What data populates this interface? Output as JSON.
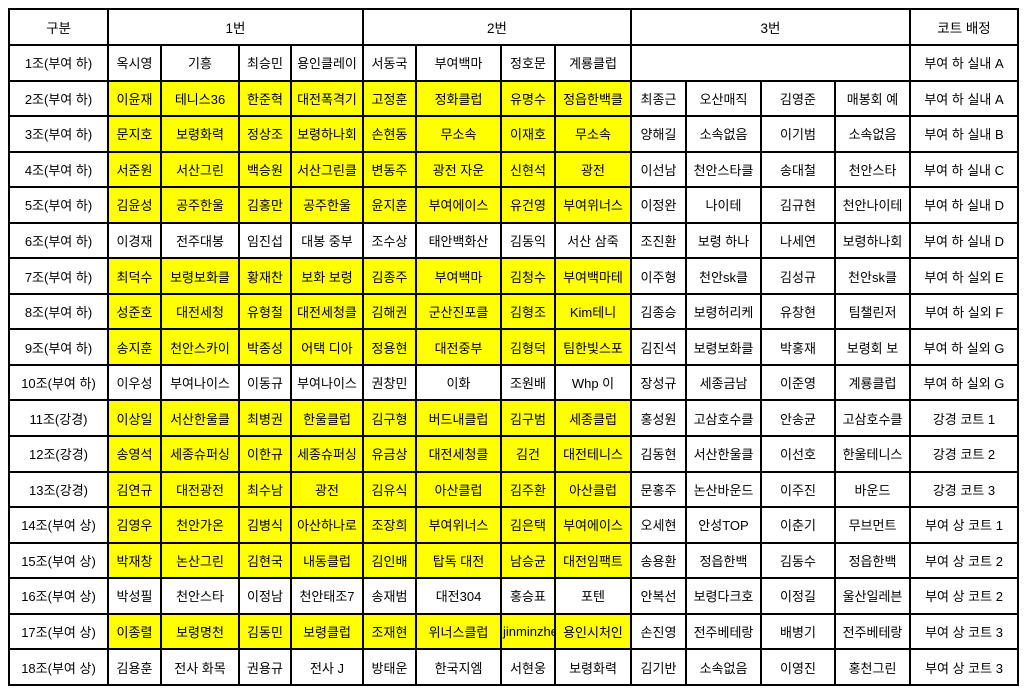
{
  "colors": {
    "highlight": "#FFFF00",
    "border": "#000000",
    "background": "#FFFFFF",
    "text": "#000000"
  },
  "header": {
    "group": "구분",
    "entry1": "1번",
    "entry2": "2번",
    "entry3": "3번",
    "court": "코트 배정"
  },
  "rows": [
    {
      "label": "1조(부여 하)",
      "entry1": [
        "옥시영",
        "기흥",
        "최승민",
        "용인클레이"
      ],
      "entry1_highlight": false,
      "entry2": [
        "서동국",
        "부여백마",
        "정호문",
        "계룡클럽"
      ],
      "entry2_highlight": false,
      "entry3": null,
      "entry3_highlight": false,
      "court": "부여 하 실내 A"
    },
    {
      "label": "2조(부여 하)",
      "entry1": [
        "이윤재",
        "테니스36",
        "한준혁",
        "대전폭격기"
      ],
      "entry1_highlight": true,
      "entry2": [
        "고정훈",
        "정화클럽",
        "유명수",
        "정읍한백클"
      ],
      "entry2_highlight": true,
      "entry3": [
        "최종근",
        "오산매직",
        "김영준",
        "매봉회 예"
      ],
      "entry3_highlight": false,
      "court": "부여 하 실내 A"
    },
    {
      "label": "3조(부여 하)",
      "entry1": [
        "문지호",
        "보령화력",
        "정상조",
        "보령하나회"
      ],
      "entry1_highlight": true,
      "entry2": [
        "손현동",
        "무소속",
        "이재호",
        "무소속"
      ],
      "entry2_highlight": true,
      "entry3": [
        "양해길",
        "소속없음",
        "이기범",
        "소속없음"
      ],
      "entry3_highlight": false,
      "court": "부여 하 실내 B"
    },
    {
      "label": "4조(부여 하)",
      "entry1": [
        "서준원",
        "서산그린",
        "백승원",
        "서산그린클"
      ],
      "entry1_highlight": true,
      "entry2": [
        "변동주",
        "광전 자운",
        "신현석",
        "광전"
      ],
      "entry2_highlight": true,
      "entry3": [
        "이선남",
        "천안스타클",
        "송대철",
        "천안스타"
      ],
      "entry3_highlight": false,
      "court": "부여 하 실내 C"
    },
    {
      "label": "5조(부여 하)",
      "entry1": [
        "김윤성",
        "공주한울",
        "김홍만",
        "공주한울"
      ],
      "entry1_highlight": true,
      "entry2": [
        "윤지훈",
        "부여에이스",
        "유건영",
        "부여위너스"
      ],
      "entry2_highlight": true,
      "entry3": [
        "이정완",
        "나이테",
        "김규현",
        "천안나이테"
      ],
      "entry3_highlight": false,
      "court": "부여 하 실내 D"
    },
    {
      "label": "6조(부여 하)",
      "entry1": [
        "이경재",
        "전주대봉",
        "임진섭",
        "대봉 중부"
      ],
      "entry1_highlight": false,
      "entry2": [
        "조수상",
        "태안백화산",
        "김동익",
        "서산 삼죽"
      ],
      "entry2_highlight": false,
      "entry3": [
        "조진환",
        "보령 하나",
        "나세연",
        "보령하나회"
      ],
      "entry3_highlight": false,
      "court": "부여 하 실내 D"
    },
    {
      "label": "7조(부여 하)",
      "entry1": [
        "최덕수",
        "보령보화클",
        "황재찬",
        "보화 보령"
      ],
      "entry1_highlight": true,
      "entry2": [
        "김종주",
        "부여백마",
        "김청수",
        "부여백마테"
      ],
      "entry2_highlight": true,
      "entry3": [
        "이주형",
        "천안sk클",
        "김성규",
        "천안sk클"
      ],
      "entry3_highlight": false,
      "court": "부여 하 실외 E"
    },
    {
      "label": "8조(부여 하)",
      "entry1": [
        "성준호",
        "대전세청",
        "유형철",
        "대전세청클"
      ],
      "entry1_highlight": true,
      "entry2": [
        "김해권",
        "군산진포클",
        "김형조",
        "Kim테니"
      ],
      "entry2_highlight": true,
      "entry3": [
        "김종승",
        "보령허리케",
        "유창현",
        "팀챌린저"
      ],
      "entry3_highlight": false,
      "court": "부여 하 실외 F"
    },
    {
      "label": "9조(부여 하)",
      "entry1": [
        "송지훈",
        "천안스카이",
        "박종성",
        "어택 디아"
      ],
      "entry1_highlight": true,
      "entry2": [
        "정용현",
        "대전중부",
        "김형덕",
        "팀한빛스포"
      ],
      "entry2_highlight": true,
      "entry3": [
        "김진석",
        "보령보화클",
        "박홍재",
        "보령회 보"
      ],
      "entry3_highlight": false,
      "court": "부여 하 실외 G"
    },
    {
      "label": "10조(부여 하)",
      "entry1": [
        "이우성",
        "부여나이스",
        "이동규",
        "부여나이스"
      ],
      "entry1_highlight": false,
      "entry2": [
        "권창민",
        "이화",
        "조원배",
        "Whp 이"
      ],
      "entry2_highlight": false,
      "entry3": [
        "장성규",
        "세종금남",
        "이준영",
        "계룡클럽"
      ],
      "entry3_highlight": false,
      "court": "부여 하 실외 G"
    },
    {
      "label": "11조(강경)",
      "entry1": [
        "이상일",
        "서산한울클",
        "최병권",
        "한울클럽"
      ],
      "entry1_highlight": true,
      "entry2": [
        "김구형",
        "버드내클럽",
        "김구범",
        "세종클럽"
      ],
      "entry2_highlight": true,
      "entry3": [
        "홍성원",
        "고삼호수클",
        "안송균",
        "고삼호수클"
      ],
      "entry3_highlight": false,
      "court": "강경 코트 1"
    },
    {
      "label": "12조(강경)",
      "entry1": [
        "송영석",
        "세종슈퍼싱",
        "이한규",
        "세종슈퍼싱"
      ],
      "entry1_highlight": true,
      "entry2": [
        "유금상",
        "대전세청클",
        "김건",
        "대전테니스"
      ],
      "entry2_highlight": true,
      "entry3": [
        "김동현",
        "서산한울클",
        "이선호",
        "한울테니스"
      ],
      "entry3_highlight": false,
      "court": "강경 코트 2"
    },
    {
      "label": "13조(강경)",
      "entry1": [
        "김연규",
        "대전광전",
        "최수남",
        "광전"
      ],
      "entry1_highlight": true,
      "entry2": [
        "김유식",
        "아산클럽",
        "김주환",
        "아산클럽"
      ],
      "entry2_highlight": true,
      "entry3": [
        "문홍주",
        "논산바운드",
        "이주진",
        "바운드"
      ],
      "entry3_highlight": false,
      "court": "강경 코트 3"
    },
    {
      "label": "14조(부여 상)",
      "entry1": [
        "김영우",
        "천안가온",
        "김병식",
        "아산하나로"
      ],
      "entry1_highlight": true,
      "entry2": [
        "조장희",
        "부여위너스",
        "김은택",
        "부여에이스"
      ],
      "entry2_highlight": true,
      "entry3": [
        "오세현",
        "안성TOP",
        "이춘기",
        "무브먼트"
      ],
      "entry3_highlight": false,
      "court": "부여 상 코트 1"
    },
    {
      "label": "15조(부여 상)",
      "entry1": [
        "박재창",
        "논산그린",
        "김현국",
        "내동클럽"
      ],
      "entry1_highlight": true,
      "entry2": [
        "김인배",
        "탑독 대전",
        "남승균",
        "대전임팩트"
      ],
      "entry2_highlight": true,
      "entry3": [
        "송용환",
        "정읍한백",
        "김동수",
        "정읍한백"
      ],
      "entry3_highlight": false,
      "court": "부여 상 코트 2"
    },
    {
      "label": "16조(부여 상)",
      "entry1": [
        "박성필",
        "천안스타",
        "이정남",
        "천안태조7"
      ],
      "entry1_highlight": false,
      "entry2": [
        "송재범",
        "대전304",
        "홍승표",
        "포텐"
      ],
      "entry2_highlight": false,
      "entry3": [
        "안복선",
        "보령다크호",
        "이정길",
        "울산일레븐"
      ],
      "entry3_highlight": false,
      "court": "부여 상 코트 2"
    },
    {
      "label": "17조(부여 상)",
      "entry1": [
        "이종렬",
        "보령명천",
        "김동민",
        "보령클럽"
      ],
      "entry1_highlight": true,
      "entry2": [
        "조재현",
        "위너스클럽",
        "jinminzhe",
        "용인시처인"
      ],
      "entry2_highlight": true,
      "entry3": [
        "손진영",
        "전주베테랑",
        "배병기",
        "전주베테랑"
      ],
      "entry3_highlight": false,
      "court": "부여 상 코트 3"
    },
    {
      "label": "18조(부여 상)",
      "entry1": [
        "김용훈",
        "전사 화목",
        "권용규",
        "전사 J"
      ],
      "entry1_highlight": false,
      "entry2": [
        "방태운",
        "한국지엠",
        "서현웅",
        "보령화력"
      ],
      "entry2_highlight": false,
      "entry3": [
        "김기반",
        "소속없음",
        "이영진",
        "홍천그린"
      ],
      "entry3_highlight": false,
      "court": "부여 상 코트 3"
    }
  ]
}
